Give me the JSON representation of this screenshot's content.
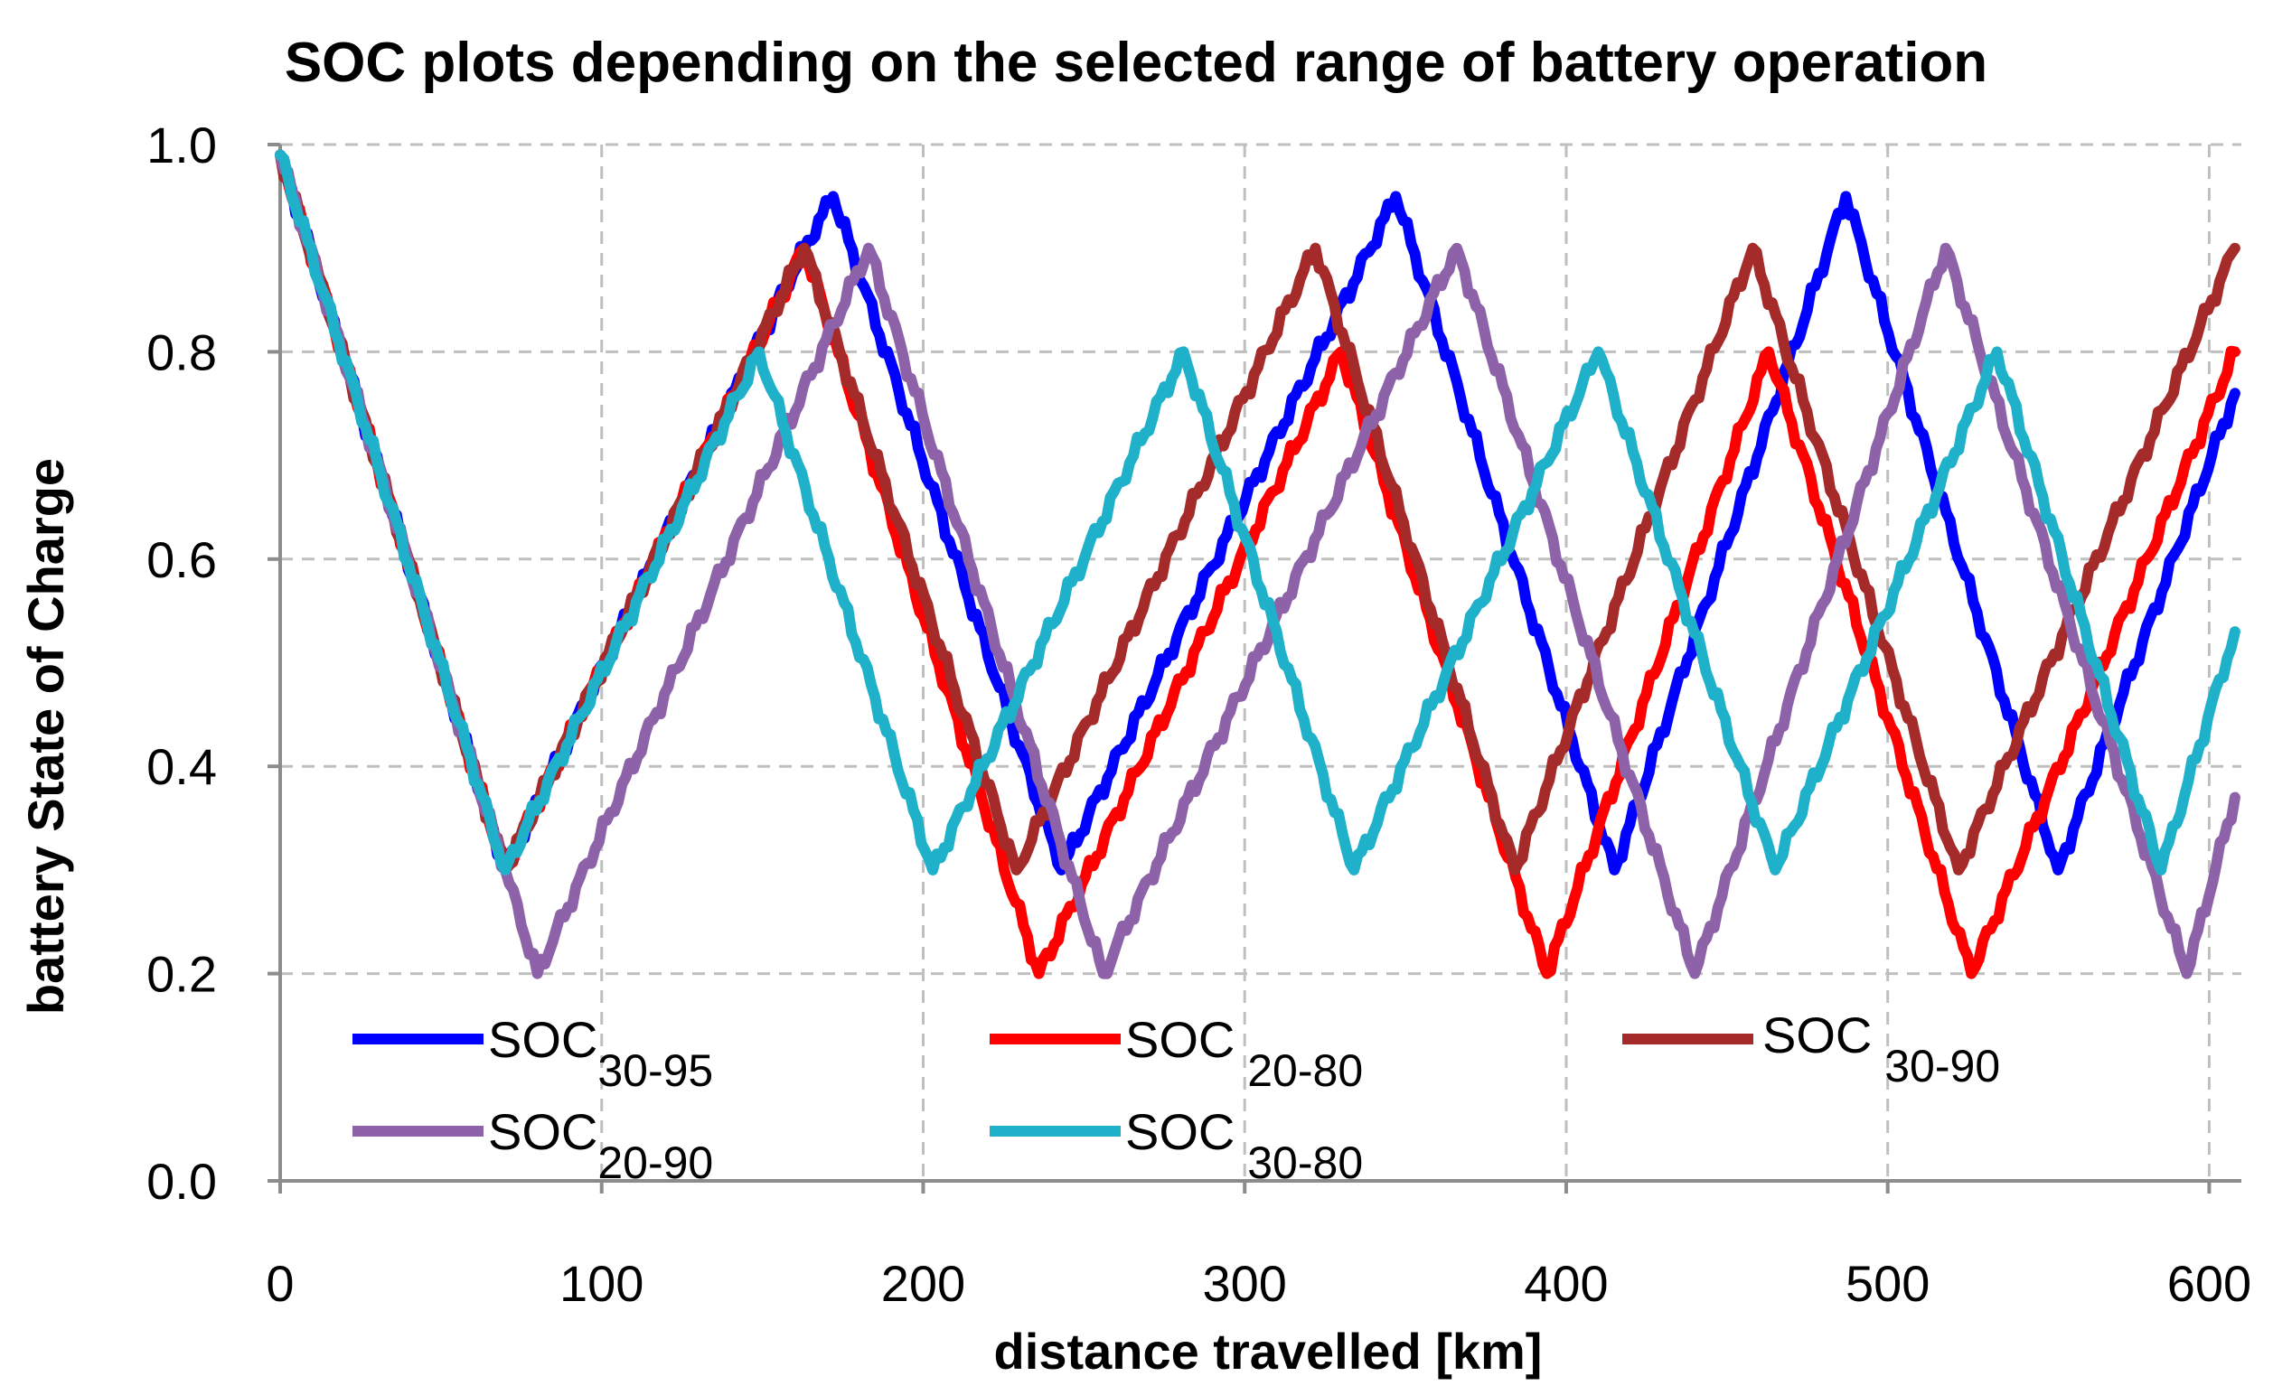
{
  "chart_data": {
    "type": "line",
    "title": "SOC plots depending on the selected range of battery operation",
    "xlabel": "distance travelled [km]",
    "ylabel": "battery State of Charge",
    "xlim": [
      0,
      610
    ],
    "ylim": [
      0.0,
      1.0
    ],
    "xticks": [
      0,
      100,
      200,
      300,
      400,
      500,
      600
    ],
    "yticks": [
      0.0,
      0.2,
      0.4,
      0.6,
      0.8,
      1.0
    ],
    "xtick_labels": [
      "0",
      "100",
      "200",
      "300",
      "400",
      "500",
      "600"
    ],
    "ytick_labels": [
      "0.0",
      "0.2",
      "0.4",
      "0.6",
      "0.8",
      "1.0"
    ],
    "grid": true,
    "series": [
      {
        "name": "SOC30-95",
        "base": "SOC",
        "sub": "30-95",
        "color": "#0000ff",
        "x": [
          0,
          70,
          163,
          172,
          243,
          347,
          415,
          487,
          553,
          608
        ],
        "y": [
          0.99,
          0.3,
          0.9,
          0.95,
          0.3,
          0.95,
          0.3,
          0.95,
          0.3,
          0.76
        ]
      },
      {
        "name": "SOC 20-80",
        "base": "SOC",
        "sub": " 20-80",
        "color": "#ff0000",
        "x": [
          0,
          70,
          163,
          236,
          330,
          394,
          463,
          526,
          608
        ],
        "y": [
          0.99,
          0.3,
          0.9,
          0.2,
          0.8,
          0.2,
          0.8,
          0.2,
          0.8
        ]
      },
      {
        "name": "SOC 30-90",
        "base": "SOC",
        "sub": " 30-90",
        "color": "#a52a2a",
        "x": [
          0,
          70,
          163,
          229,
          322,
          384,
          458,
          522,
          608
        ],
        "y": [
          0.99,
          0.3,
          0.9,
          0.3,
          0.9,
          0.3,
          0.9,
          0.3,
          0.9
        ]
      },
      {
        "name": "SOC20-90",
        "base": "SOC",
        "sub": "20-90",
        "color": "#8e62a8",
        "x": [
          0,
          70,
          80,
          183,
          256,
          366,
          440,
          518,
          593,
          608
        ],
        "y": [
          0.99,
          0.3,
          0.2,
          0.9,
          0.2,
          0.9,
          0.2,
          0.9,
          0.2,
          0.37
        ]
      },
      {
        "name": "SOC 30-80",
        "base": "SOC",
        "sub": " 30-80",
        "color": "#1fb1c9",
        "x": [
          0,
          70,
          149,
          203,
          281,
          334,
          410,
          465,
          534,
          585,
          608
        ],
        "y": [
          0.99,
          0.3,
          0.8,
          0.3,
          0.8,
          0.3,
          0.8,
          0.3,
          0.8,
          0.3,
          0.53
        ]
      }
    ]
  }
}
